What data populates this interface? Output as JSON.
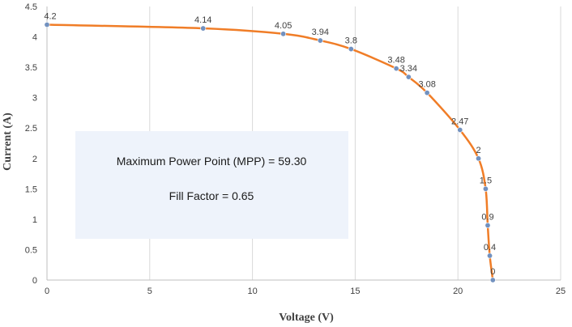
{
  "chart_data": {
    "type": "line",
    "title": "",
    "xlabel": "Voltage (V)",
    "ylabel": "Current (A)",
    "xlim": [
      0,
      25
    ],
    "ylim": [
      0,
      4.5
    ],
    "x_ticks": [
      "0",
      "5",
      "10",
      "15",
      "20",
      "25"
    ],
    "y_ticks": [
      "0",
      "0.5",
      "1",
      "1.5",
      "2",
      "2.5",
      "3",
      "3.5",
      "4",
      "4.5"
    ],
    "grid": "vertical",
    "legend": "none",
    "series": [
      {
        "x": [
          0,
          7.6,
          11.5,
          13.3,
          14.8,
          17.0,
          17.6,
          18.5,
          20.1,
          21.0,
          21.35,
          21.45,
          21.55,
          21.7
        ],
        "values": [
          4.2,
          4.14,
          4.05,
          3.94,
          3.8,
          3.48,
          3.34,
          3.08,
          2.47,
          2.0,
          1.5,
          0.9,
          0.4,
          0.0
        ],
        "labels": [
          "4.2",
          "4.14",
          "4.05",
          "3.94",
          "3.8",
          "3.48",
          "3.34",
          "3.08",
          "2.47",
          "2",
          "1.5",
          "0.9",
          "0.4",
          "0"
        ],
        "line_color": "#f07d27",
        "marker_color": "#7291bf"
      }
    ],
    "annotation": {
      "lines": [
        "Maximum Power Point (MPP) = 59.30",
        "Fill Factor = 0.65"
      ],
      "box_color": "#eef3fb"
    }
  }
}
